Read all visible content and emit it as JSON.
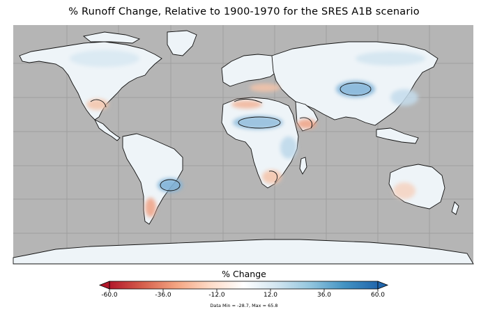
{
  "title": "% Runoff Change, Relative to 1900-1970 for the SRES A1B scenario",
  "colorbar": {
    "title": "% Change",
    "min": -60.0,
    "max": 60.0,
    "ticks": [
      {
        "value": -60.0,
        "label": "-60.0"
      },
      {
        "value": -36.0,
        "label": "-36.0"
      },
      {
        "value": -12.0,
        "label": "-12.0"
      },
      {
        "value": 12.0,
        "label": "12.0"
      },
      {
        "value": 36.0,
        "label": "36.0"
      },
      {
        "value": 60.0,
        "label": "60.0"
      }
    ],
    "colors": [
      "#b2182b",
      "#d6604d",
      "#f4a582",
      "#fddbc7",
      "#ffffff",
      "#d1e5f0",
      "#92c5de",
      "#4393c3",
      "#2166ac"
    ],
    "under_color": "#b2182b",
    "over_color": "#2166ac"
  },
  "data_range_text": "Data Min = -28.7, Max = 65.8",
  "map": {
    "background_color": "#b5b5b5",
    "land_color": "#eef4f8",
    "gridlines": true,
    "projection": "equirectangular"
  }
}
